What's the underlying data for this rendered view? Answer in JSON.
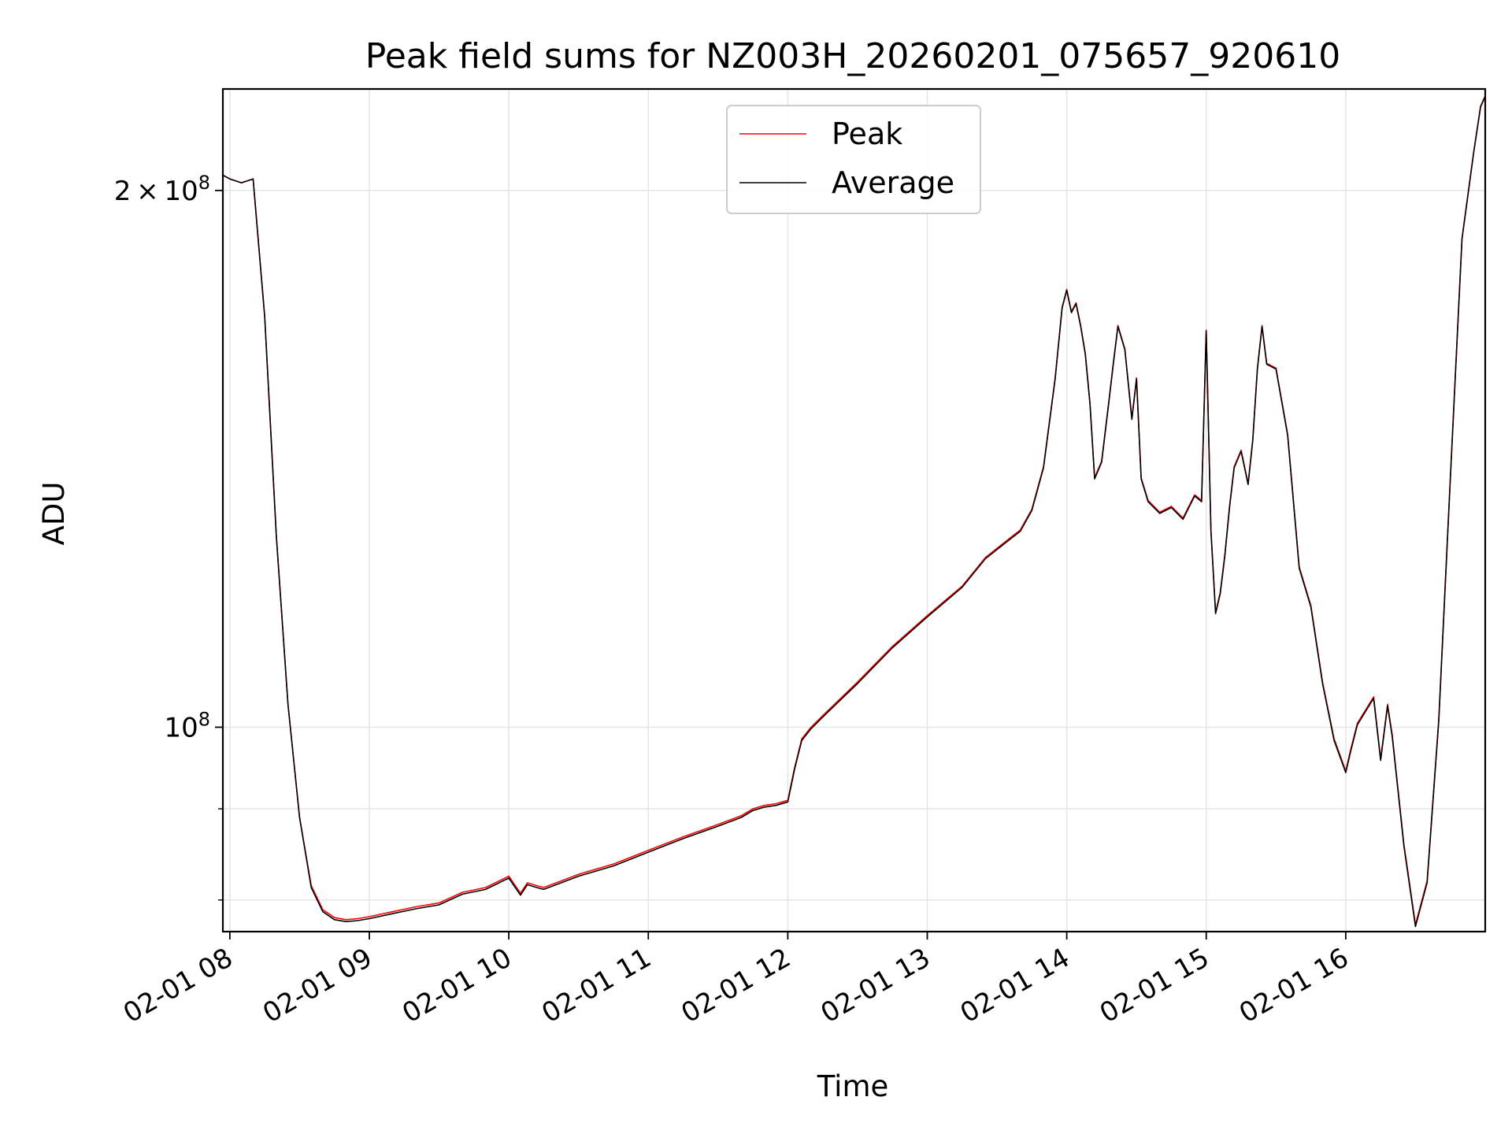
{
  "chart_data": {
    "type": "line",
    "title": "Peak field sums for NZ003H_20260201_075657_920610",
    "xlabel": "Time",
    "ylabel": "ADU",
    "y_scale": "log",
    "xlim": [
      "2026-02-01T07:57:00",
      "2026-02-01T17:00:00"
    ],
    "ylim": [
      76800000,
      228000000
    ],
    "grid": true,
    "legend_position": "upper-center",
    "x_ticks": [
      {
        "value": "2026-02-01T08:00",
        "label": "02-01 08"
      },
      {
        "value": "2026-02-01T09:00",
        "label": "02-01 09"
      },
      {
        "value": "2026-02-01T10:00",
        "label": "02-01 10"
      },
      {
        "value": "2026-02-01T11:00",
        "label": "02-01 11"
      },
      {
        "value": "2026-02-01T12:00",
        "label": "02-01 12"
      },
      {
        "value": "2026-02-01T13:00",
        "label": "02-01 13"
      },
      {
        "value": "2026-02-01T14:00",
        "label": "02-01 14"
      },
      {
        "value": "2026-02-01T15:00",
        "label": "02-01 15"
      },
      {
        "value": "2026-02-01T16:00",
        "label": "02-01 16"
      }
    ],
    "y_major_ticks": [
      {
        "value": 100000000,
        "base": "10",
        "exp": "8"
      },
      {
        "value": 200000000,
        "mantissa": "2",
        "base": "10",
        "exp": "8"
      }
    ],
    "y_minor_ticks": [
      80000000,
      90000000
    ],
    "x": [
      "07:57",
      "08:00",
      "08:05",
      "08:10",
      "08:15",
      "08:20",
      "08:25",
      "08:30",
      "08:35",
      "08:40",
      "08:45",
      "08:50",
      "08:55",
      "09:00",
      "09:10",
      "09:20",
      "09:30",
      "09:40",
      "09:50",
      "10:00",
      "10:05",
      "10:08",
      "10:12",
      "10:15",
      "10:30",
      "10:45",
      "11:00",
      "11:15",
      "11:30",
      "11:40",
      "11:45",
      "11:50",
      "11:55",
      "12:00",
      "12:03",
      "12:06",
      "12:10",
      "12:15",
      "12:30",
      "12:45",
      "13:00",
      "13:15",
      "13:25",
      "13:35",
      "13:40",
      "13:45",
      "13:50",
      "13:55",
      "13:58",
      "14:00",
      "14:02",
      "14:04",
      "14:06",
      "14:08",
      "14:10",
      "14:12",
      "14:15",
      "14:18",
      "14:20",
      "14:22",
      "14:25",
      "14:28",
      "14:30",
      "14:32",
      "14:35",
      "14:40",
      "14:45",
      "14:50",
      "14:55",
      "14:58",
      "15:00",
      "15:02",
      "15:04",
      "15:06",
      "15:08",
      "15:10",
      "15:12",
      "15:15",
      "15:18",
      "15:20",
      "15:22",
      "15:24",
      "15:26",
      "15:30",
      "15:35",
      "15:40",
      "15:45",
      "15:50",
      "15:55",
      "16:00",
      "16:02",
      "16:05",
      "16:08",
      "16:10",
      "16:12",
      "16:15",
      "16:18",
      "16:20",
      "16:25",
      "16:30",
      "16:35",
      "16:40",
      "16:45",
      "16:50",
      "16:55",
      "16:58",
      "17:00"
    ],
    "series": [
      {
        "name": "Peak",
        "color": "#ff0000",
        "values": [
          204000000,
          203000000,
          202000000,
          203000000,
          170000000,
          128000000,
          103000000,
          89000000,
          81500000,
          79000000,
          78200000,
          78000000,
          78100000,
          78300000,
          78800000,
          79300000,
          79700000,
          80800000,
          81300000,
          82500000,
          80700000,
          81800000,
          81500000,
          81300000,
          82700000,
          83800000,
          85300000,
          86800000,
          88200000,
          89200000,
          90000000,
          90400000,
          90600000,
          91000000,
          95000000,
          98500000,
          100000000,
          101500000,
          106000000,
          111000000,
          115500000,
          120000000,
          124500000,
          127500000,
          129000000,
          132500000,
          140000000,
          157000000,
          172000000,
          176000000,
          171000000,
          173000000,
          168000000,
          162000000,
          152000000,
          138000000,
          141000000,
          152000000,
          160000000,
          168000000,
          163000000,
          149000000,
          157000000,
          138000000,
          134000000,
          132000000,
          133000000,
          131000000,
          135000000,
          134000000,
          167000000,
          129000000,
          116000000,
          119000000,
          125000000,
          133000000,
          140000000,
          143000000,
          137000000,
          145000000,
          159000000,
          168000000,
          160000000,
          159000000,
          146000000,
          123000000,
          117000000,
          106000000,
          98500000,
          94500000,
          97000000,
          100500000,
          102000000,
          103000000,
          104000000,
          96000000,
          103000000,
          99000000,
          86000000,
          77500000,
          82000000,
          101000000,
          138000000,
          188000000,
          210000000,
          223000000,
          226000000
        ]
      },
      {
        "name": "Average",
        "color": "#000000",
        "values": [
          204000000,
          203000000,
          202000000,
          203000000,
          170000000,
          128000000,
          103000000,
          89000000,
          81300000,
          78800000,
          78000000,
          77800000,
          77900000,
          78100000,
          78600000,
          79100000,
          79500000,
          80600000,
          81100000,
          82300000,
          80500000,
          81600000,
          81300000,
          81100000,
          82500000,
          83600000,
          85100000,
          86600000,
          88000000,
          89000000,
          89800000,
          90200000,
          90400000,
          90800000,
          94800000,
          98300000,
          99800000,
          101300000,
          105800000,
          110800000,
          115300000,
          119800000,
          124300000,
          127300000,
          128800000,
          132300000,
          139800000,
          156800000,
          171800000,
          175800000,
          170800000,
          172800000,
          167800000,
          161800000,
          151800000,
          137800000,
          140800000,
          151800000,
          159800000,
          167800000,
          162800000,
          148800000,
          156800000,
          137800000,
          133800000,
          131800000,
          132800000,
          130800000,
          134800000,
          133800000,
          166800000,
          128800000,
          115800000,
          118800000,
          124800000,
          132800000,
          139800000,
          142800000,
          136800000,
          144800000,
          158800000,
          167800000,
          159800000,
          158800000,
          145800000,
          122800000,
          116800000,
          105800000,
          98300000,
          94300000,
          96800000,
          100300000,
          101800000,
          102800000,
          103800000,
          95800000,
          102800000,
          98800000,
          85800000,
          77300000,
          81800000,
          100800000,
          137800000,
          187800000,
          209800000,
          222800000,
          225800000
        ]
      }
    ]
  }
}
